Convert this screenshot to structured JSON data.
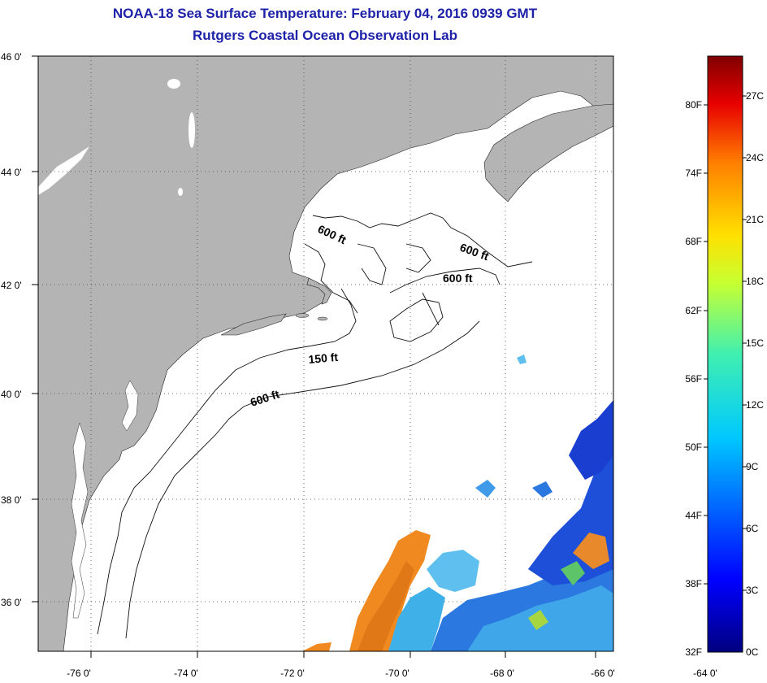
{
  "header": {
    "title_line1": "NOAA-18 Sea Surface Temperature:  February 04, 2016 0939 GMT",
    "title_line2": "Rutgers Coastal Ocean Observation Lab"
  },
  "map": {
    "lat_labels": [
      "46 0'",
      "44 0'",
      "42 0'",
      "40 0'",
      "38 0'",
      "36 0'"
    ],
    "lon_labels": [
      "-76 0'",
      "-74 0'",
      "-72 0'",
      "-70 0'",
      "-68 0'",
      "-66 0'",
      "-64 0'"
    ],
    "contour_labels": [
      "600 ft",
      "600 ft",
      "600 ft",
      "150 ft",
      "600 ft"
    ],
    "colors": {
      "land": "#b4b4b4",
      "water": "#ffffff",
      "grid": "#555555"
    }
  },
  "colorbar": {
    "fahrenheit_labels": [
      "80F",
      "74F",
      "68F",
      "62F",
      "56F",
      "50F",
      "44F",
      "38F",
      "32F"
    ],
    "celsius_labels": [
      "27C",
      "24C",
      "21C",
      "18C",
      "15C",
      "12C",
      "9C",
      "6C",
      "3C",
      "0C"
    ]
  }
}
